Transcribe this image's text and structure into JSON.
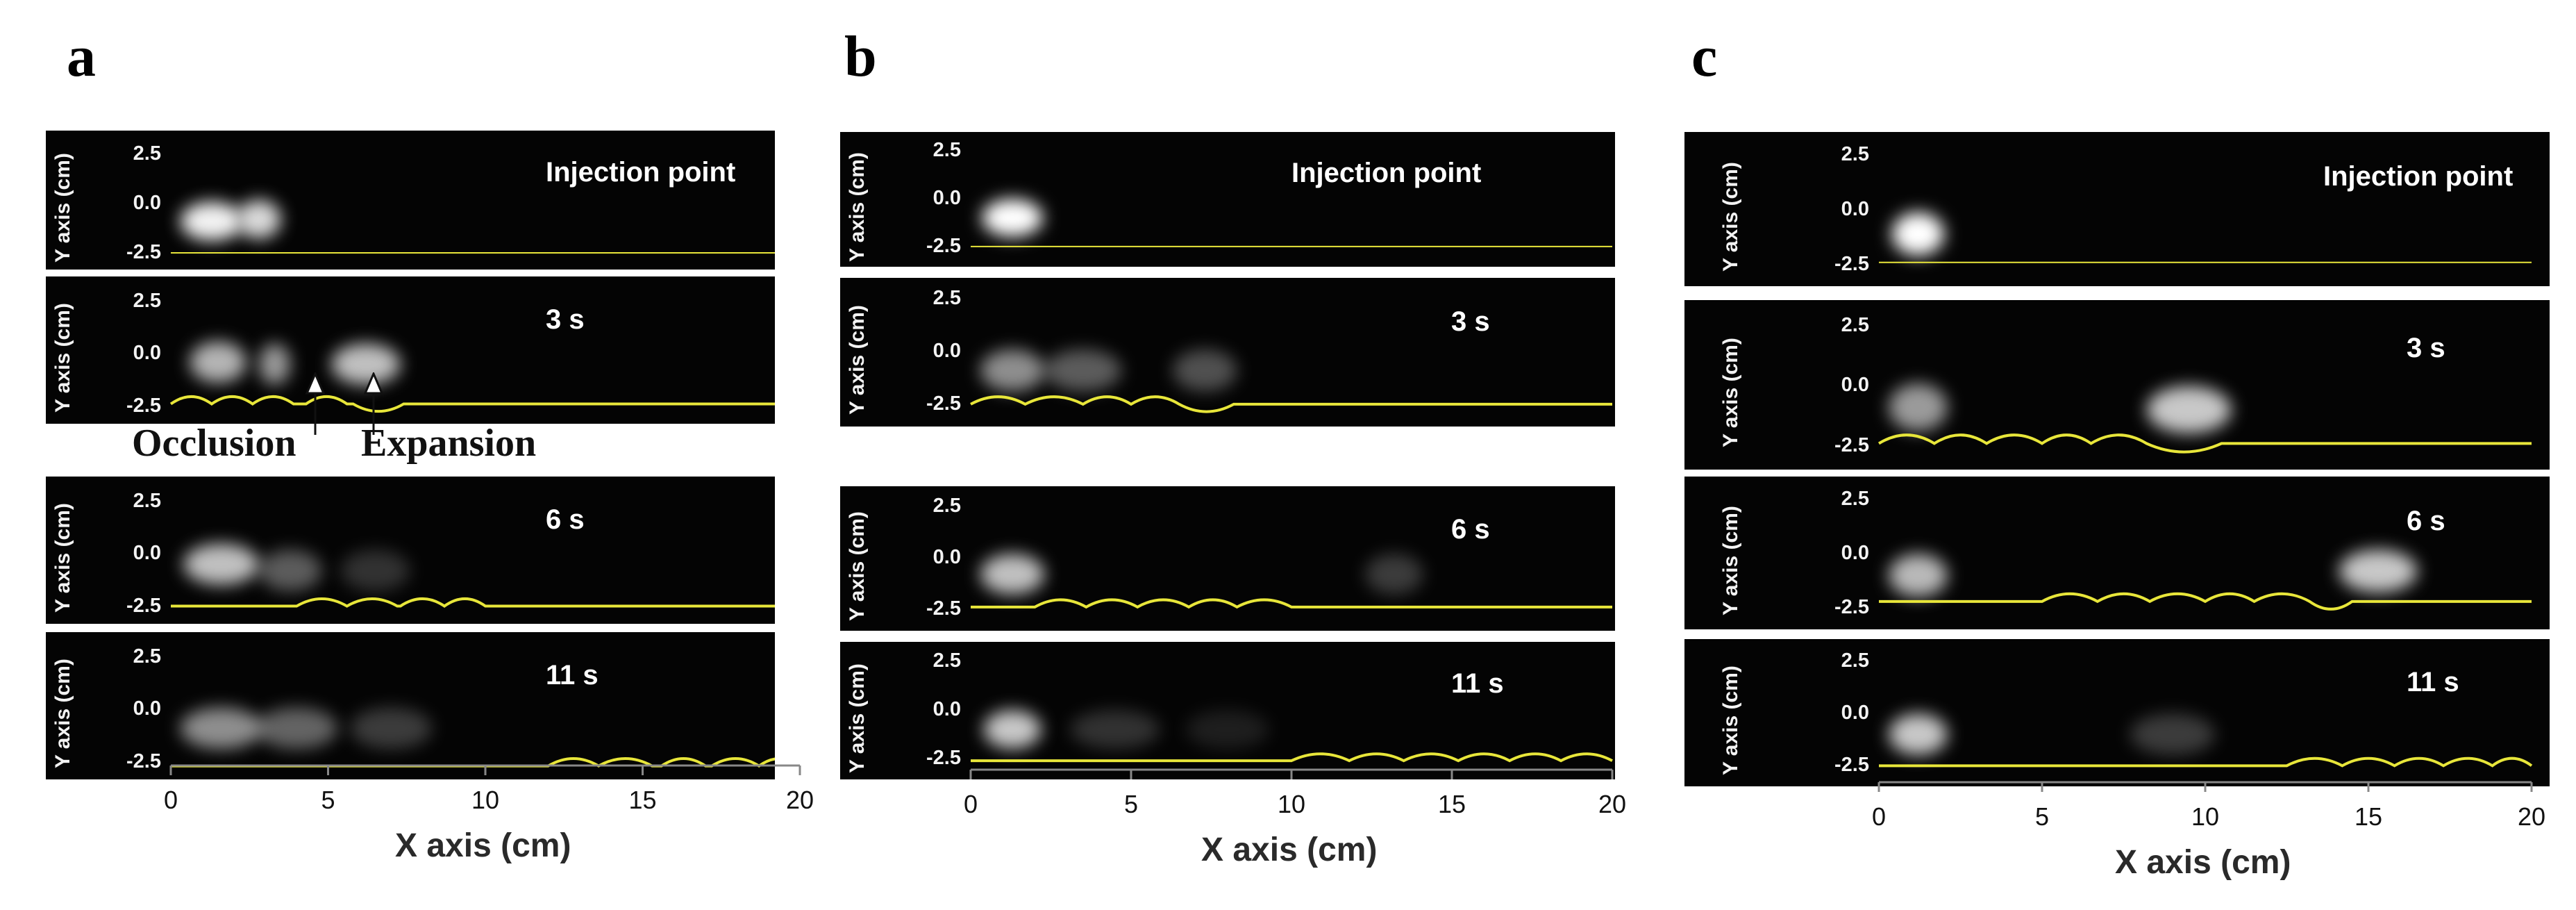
{
  "figure": {
    "columns": [
      {
        "label": "a",
        "panels": [
          {
            "title": "Injection point",
            "yticks": [
              "2.5",
              "0.0",
              "-2.5"
            ],
            "ylabel": "Y axis (cm)",
            "blobs": [
              {
                "x": 1.3,
                "y": -0.9,
                "w": 2.0,
                "intensity": 0.95
              },
              {
                "x": 2.8,
                "y": -0.8,
                "w": 1.4,
                "intensity": 0.85
              }
            ],
            "vessel": {
              "baseline": -2.5,
              "arches": []
            }
          },
          {
            "title": "3 s",
            "yticks": [
              "2.5",
              "0.0",
              "-2.5"
            ],
            "ylabel": "Y axis (cm)",
            "blobs": [
              {
                "x": 1.5,
                "y": -0.4,
                "w": 1.8,
                "intensity": 0.7
              },
              {
                "x": 3.3,
                "y": -0.5,
                "w": 1.0,
                "intensity": 0.6
              },
              {
                "x": 6.2,
                "y": -0.5,
                "w": 2.2,
                "intensity": 0.75
              }
            ],
            "vessel": {
              "baseline": -2.4,
              "arches": [
                [
                  0.0,
                  1.3,
                  "up"
                ],
                [
                  1.3,
                  2.6,
                  "up"
                ],
                [
                  2.6,
                  3.9,
                  "up"
                ],
                [
                  4.3,
                  5.6,
                  "up"
                ],
                [
                  5.8,
                  7.4,
                  "down"
                ]
              ]
            }
          },
          {
            "title": "6 s",
            "yticks": [
              "2.5",
              "0.0",
              "-2.5"
            ],
            "ylabel": "Y axis (cm)",
            "blobs": [
              {
                "x": 1.6,
                "y": -0.5,
                "w": 2.4,
                "intensity": 0.75
              },
              {
                "x": 3.8,
                "y": -0.8,
                "w": 2.0,
                "intensity": 0.35
              },
              {
                "x": 6.5,
                "y": -0.8,
                "w": 2.2,
                "intensity": 0.18
              }
            ],
            "vessel": {
              "baseline": -2.5,
              "arches": [
                [
                  4.0,
                  5.6,
                  "up"
                ],
                [
                  5.6,
                  7.2,
                  "up"
                ],
                [
                  7.3,
                  8.7,
                  "up"
                ],
                [
                  8.7,
                  10.0,
                  "up"
                ]
              ]
            }
          },
          {
            "title": "11 s",
            "yticks": [
              "2.5",
              "0.0",
              "-2.5"
            ],
            "ylabel": "Y axis (cm)",
            "blobs": [
              {
                "x": 1.6,
                "y": -0.9,
                "w": 2.6,
                "intensity": 0.55
              },
              {
                "x": 4.0,
                "y": -0.9,
                "w": 2.6,
                "intensity": 0.38
              },
              {
                "x": 7.0,
                "y": -0.9,
                "w": 2.6,
                "intensity": 0.22
              }
            ],
            "vessel": {
              "baseline": -2.7,
              "arches": [
                [
                  12.0,
                  13.6,
                  "up"
                ],
                [
                  13.6,
                  15.3,
                  "up"
                ],
                [
                  15.6,
                  17.0,
                  "up"
                ],
                [
                  17.2,
                  18.7,
                  "up"
                ],
                [
                  18.7,
                  20.0,
                  "up"
                ]
              ]
            }
          }
        ],
        "xaxis": {
          "ticks": [
            "0",
            "5",
            "10",
            "15",
            "20"
          ],
          "title": "X axis (cm)"
        },
        "annotations": [
          "Occlusion",
          "Expansion"
        ]
      },
      {
        "label": "b",
        "panels": [
          {
            "title": "Injection point",
            "yticks": [
              "2.5",
              "0.0",
              "-2.5"
            ],
            "ylabel": "Y axis (cm)",
            "blobs": [
              {
                "x": 1.3,
                "y": -1.0,
                "w": 1.9,
                "intensity": 1.0
              }
            ],
            "vessel": {
              "baseline": -2.5,
              "arches": []
            }
          },
          {
            "title": "3 s",
            "yticks": [
              "2.5",
              "0.0",
              "-2.5"
            ],
            "ylabel": "Y axis (cm)",
            "blobs": [
              {
                "x": 1.3,
                "y": -0.9,
                "w": 2.0,
                "intensity": 0.55
              },
              {
                "x": 3.5,
                "y": -0.9,
                "w": 2.4,
                "intensity": 0.35
              },
              {
                "x": 7.3,
                "y": -0.9,
                "w": 2.0,
                "intensity": 0.3
              }
            ],
            "vessel": {
              "baseline": -2.5,
              "arches": [
                [
                  0.0,
                  1.7,
                  "up"
                ],
                [
                  1.7,
                  3.5,
                  "up"
                ],
                [
                  3.5,
                  5.0,
                  "up"
                ],
                [
                  5.0,
                  6.5,
                  "up"
                ],
                [
                  6.5,
                  8.2,
                  "down"
                ]
              ]
            }
          },
          {
            "title": "6 s",
            "yticks": [
              "2.5",
              "0.0",
              "-2.5"
            ],
            "ylabel": "Y axis (cm)",
            "blobs": [
              {
                "x": 1.3,
                "y": -0.8,
                "w": 2.0,
                "intensity": 0.75
              },
              {
                "x": 13.2,
                "y": -0.8,
                "w": 1.8,
                "intensity": 0.22
              }
            ],
            "vessel": {
              "baseline": -2.4,
              "arches": [
                [
                  2.0,
                  3.6,
                  "up"
                ],
                [
                  3.6,
                  5.2,
                  "up"
                ],
                [
                  5.2,
                  6.8,
                  "up"
                ],
                [
                  6.8,
                  8.3,
                  "up"
                ],
                [
                  8.3,
                  10.0,
                  "up"
                ]
              ]
            }
          },
          {
            "title": "11 s",
            "yticks": [
              "2.5",
              "0.0",
              "-2.5"
            ],
            "ylabel": "Y axis (cm)",
            "blobs": [
              {
                "x": 1.3,
                "y": -1.0,
                "w": 1.8,
                "intensity": 0.78
              },
              {
                "x": 4.5,
                "y": -1.0,
                "w": 2.8,
                "intensity": 0.18
              },
              {
                "x": 8.0,
                "y": -1.0,
                "w": 2.6,
                "intensity": 0.1
              }
            ],
            "vessel": {
              "baseline": -2.6,
              "arches": [
                [
                  10.0,
                  11.8,
                  "up"
                ],
                [
                  11.8,
                  13.5,
                  "up"
                ],
                [
                  13.5,
                  15.2,
                  "up"
                ],
                [
                  15.2,
                  16.8,
                  "up"
                ],
                [
                  16.8,
                  18.4,
                  "up"
                ],
                [
                  18.4,
                  20.0,
                  "up"
                ]
              ]
            }
          }
        ],
        "xaxis": {
          "ticks": [
            "0",
            "5",
            "10",
            "15",
            "20"
          ],
          "title": "X axis (cm)"
        }
      },
      {
        "label": "c",
        "panels": [
          {
            "title": "Injection point",
            "yticks": [
              "2.5",
              "0.0",
              "-2.5"
            ],
            "ylabel": "Y axis (cm)",
            "blobs": [
              {
                "x": 1.2,
                "y": -1.1,
                "w": 1.6,
                "intensity": 1.0
              }
            ],
            "vessel": {
              "baseline": -2.4,
              "arches": []
            }
          },
          {
            "title": "3 s",
            "yticks": [
              "2.5",
              "0.0",
              "-2.5"
            ],
            "ylabel": "Y axis (cm)",
            "blobs": [
              {
                "x": 1.2,
                "y": -0.9,
                "w": 1.8,
                "intensity": 0.6
              },
              {
                "x": 9.5,
                "y": -1.0,
                "w": 2.6,
                "intensity": 0.78
              }
            ],
            "vessel": {
              "baseline": -2.4,
              "arches": [
                [
                  0.0,
                  1.7,
                  "up"
                ],
                [
                  1.7,
                  3.3,
                  "up"
                ],
                [
                  3.3,
                  5.0,
                  "up"
                ],
                [
                  5.0,
                  6.5,
                  "up"
                ],
                [
                  6.5,
                  8.2,
                  "up"
                ],
                [
                  8.2,
                  10.5,
                  "down"
                ]
              ]
            }
          },
          {
            "title": "6 s",
            "yticks": [
              "2.5",
              "0.0",
              "-2.5"
            ],
            "ylabel": "Y axis (cm)",
            "blobs": [
              {
                "x": 1.2,
                "y": -1.0,
                "w": 1.8,
                "intensity": 0.72
              },
              {
                "x": 15.3,
                "y": -0.8,
                "w": 2.4,
                "intensity": 0.78
              }
            ],
            "vessel": {
              "baseline": -2.2,
              "arches": [
                [
                  5.0,
                  6.7,
                  "up"
                ],
                [
                  6.7,
                  8.3,
                  "up"
                ],
                [
                  8.3,
                  10.0,
                  "up"
                ],
                [
                  10.0,
                  11.5,
                  "up"
                ],
                [
                  11.5,
                  13.2,
                  "up"
                ],
                [
                  13.2,
                  14.5,
                  "down"
                ]
              ]
            }
          },
          {
            "title": "11 s",
            "yticks": [
              "2.5",
              "0.0",
              "-2.5"
            ],
            "ylabel": "Y axis (cm)",
            "blobs": [
              {
                "x": 1.2,
                "y": -1.0,
                "w": 1.8,
                "intensity": 0.78
              },
              {
                "x": 9.0,
                "y": -1.0,
                "w": 2.6,
                "intensity": 0.22
              }
            ],
            "vessel": {
              "baseline": -2.5,
              "arches": [
                [
                  12.5,
                  14.2,
                  "up"
                ],
                [
                  14.2,
                  15.8,
                  "up"
                ],
                [
                  15.8,
                  17.3,
                  "up"
                ],
                [
                  17.3,
                  18.8,
                  "up"
                ],
                [
                  18.8,
                  20.0,
                  "up"
                ]
              ]
            }
          }
        ],
        "xaxis": {
          "ticks": [
            "0",
            "5",
            "10",
            "15",
            "20"
          ],
          "title": "X axis (cm)"
        }
      }
    ]
  },
  "colors": {
    "vessel": "#e8e63a",
    "panel_bg": "#040404",
    "blob": "#ffffff"
  }
}
